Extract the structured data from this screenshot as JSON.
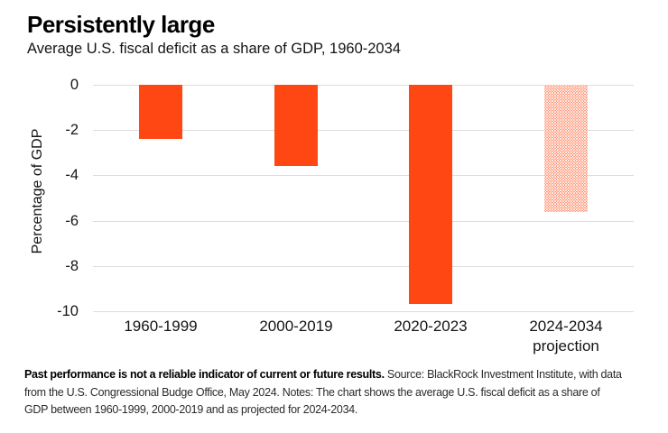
{
  "header": {
    "title": "Persistently large",
    "subtitle": "Average U.S. fiscal deficit as a share of GDP, 1960-2034"
  },
  "chart_data": {
    "type": "bar",
    "title": "Persistently large",
    "subtitle": "Average U.S. fiscal deficit as a share of GDP, 1960-2034",
    "categories": [
      "1960-1999",
      "2000-2019",
      "2020-2023",
      "2024-2034\nprojection"
    ],
    "values": [
      -2.4,
      -3.6,
      -9.7,
      -5.6
    ],
    "bar_styles": [
      "solid",
      "solid",
      "solid",
      "dotted"
    ],
    "xlabel": "",
    "ylabel": "Percentage of GDP",
    "ylim": [
      -10,
      0
    ],
    "yticks": [
      0,
      -2,
      -4,
      -6,
      -8,
      -10
    ],
    "grid": "horizontal",
    "legend": "none",
    "bar_color": "#FF4713",
    "gridline_color": "#dcdcdc"
  },
  "footnote": {
    "line1_bold": "Past performance is not a reliable indicator of current or future results.",
    "line1_rest": " Source: BlackRock Investment Institute, with data",
    "line2": "from the U.S. Congressional Budge Office, May 2024. Notes: The chart shows the average U.S. fiscal deficit as a share of",
    "line3": "GDP between 1960-1999, 2000-2019 and as projected for 2024-2034."
  }
}
